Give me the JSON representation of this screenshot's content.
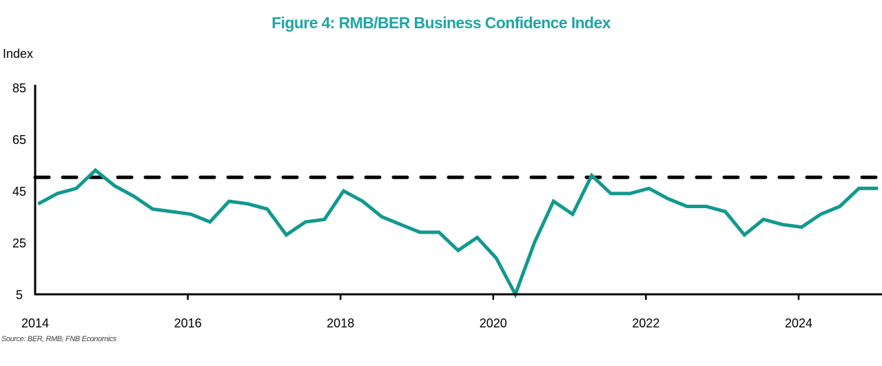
{
  "colors": {
    "title": "#1fa6a6",
    "series": "#12998f",
    "reference": "#000000",
    "axis": "#000000"
  },
  "chart_data": {
    "type": "line",
    "title": "Figure 4: RMB/BER Business Confidence Index",
    "ylabel": "Index",
    "xlabel": "",
    "source": "Source: BER, RMB, FNB Economics",
    "ylim": [
      5,
      85
    ],
    "yticks": [
      5,
      25,
      45,
      65,
      85
    ],
    "xlim": [
      2014,
      2025.1
    ],
    "xticks": [
      2014,
      2016,
      2018,
      2020,
      2022,
      2024
    ],
    "grid": false,
    "legend": "none",
    "reference_line": {
      "value": 50,
      "style": "dashed"
    },
    "series": [
      {
        "name": "RMB/BER Business Confidence Index",
        "frequency": "quarterly",
        "x": [
          "2014Q1",
          "2014Q2",
          "2014Q3",
          "2014Q4",
          "2015Q1",
          "2015Q2",
          "2015Q3",
          "2015Q4",
          "2016Q1",
          "2016Q2",
          "2016Q3",
          "2016Q4",
          "2017Q1",
          "2017Q2",
          "2017Q3",
          "2017Q4",
          "2018Q1",
          "2018Q2",
          "2018Q3",
          "2018Q4",
          "2019Q1",
          "2019Q2",
          "2019Q3",
          "2019Q4",
          "2020Q1",
          "2020Q2",
          "2020Q3",
          "2020Q4",
          "2021Q1",
          "2021Q2",
          "2021Q3",
          "2021Q4",
          "2022Q1",
          "2022Q2",
          "2022Q3",
          "2022Q4",
          "2023Q1",
          "2023Q2",
          "2023Q3",
          "2023Q4",
          "2024Q1",
          "2024Q2",
          "2024Q3",
          "2024Q4",
          "2025Q1"
        ],
        "values": [
          40,
          44,
          46,
          53,
          47,
          43,
          38,
          37,
          36,
          33,
          41,
          40,
          38,
          28,
          33,
          34,
          45,
          41,
          35,
          32,
          29,
          29,
          22,
          27,
          19,
          5,
          25,
          41,
          36,
          51,
          44,
          44,
          46,
          42,
          39,
          39,
          37,
          28,
          34,
          32,
          31,
          36,
          39,
          46,
          46
        ]
      }
    ]
  }
}
